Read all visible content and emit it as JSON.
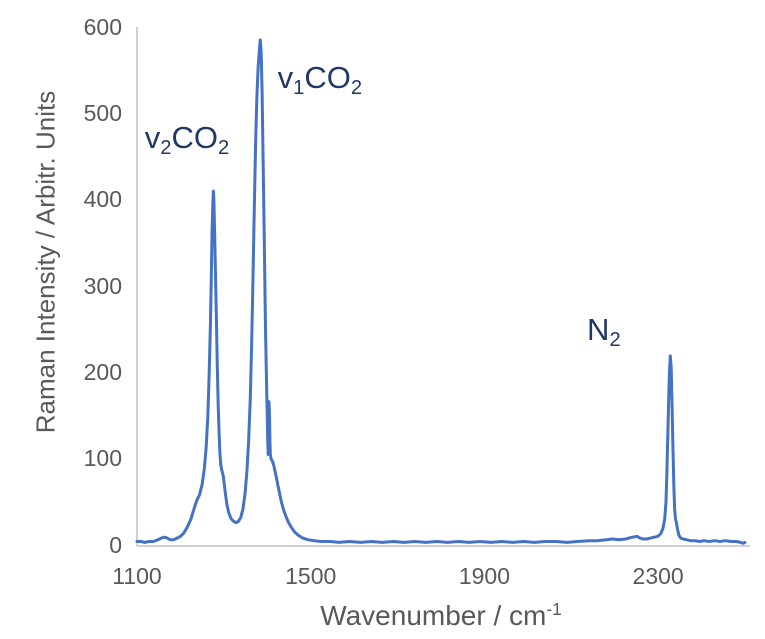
{
  "chart_data": {
    "type": "line",
    "title": "",
    "ylabel": "Raman Intensity / Arbitr. Units",
    "xlabel_parts": [
      {
        "text": "Wavenumber / cm"
      },
      {
        "text": "-1",
        "sup": true
      }
    ],
    "xlim": [
      1100,
      2500
    ],
    "ylim": [
      0,
      600
    ],
    "xticks": [
      1100,
      1500,
      1900,
      2300
    ],
    "yticks": [
      0,
      100,
      200,
      300,
      400,
      500,
      600
    ],
    "grid": false,
    "legend": "none",
    "colors": {
      "line": "#4472c4",
      "axis": "#c2c2c2",
      "tick_text": "#595959",
      "annotation_text": "#1f3864",
      "background": "#ffffff"
    },
    "peaks": [
      {
        "label": "v2CO2",
        "wavenumber": 1276,
        "intensity": 410
      },
      {
        "label": "v1CO2",
        "wavenumber": 1384,
        "intensity": 585
      },
      {
        "label": "N2",
        "wavenumber": 2328,
        "intensity": 219
      }
    ],
    "annotations": [
      {
        "name": "v2-co2-peak-label",
        "x": 1215,
        "y": 471,
        "parts": [
          {
            "text": "v"
          },
          {
            "text": "2",
            "sub": true
          },
          {
            "text": "CO"
          },
          {
            "text": "2",
            "sub": true
          }
        ]
      },
      {
        "name": "v1-co2-peak-label",
        "x": 1521,
        "y": 541,
        "parts": [
          {
            "text": "v"
          },
          {
            "text": "1",
            "sub": true
          },
          {
            "text": "CO"
          },
          {
            "text": "2",
            "sub": true
          }
        ]
      },
      {
        "name": "n2-peak-label",
        "x": 2175,
        "y": 249,
        "parts": [
          {
            "text": "N"
          },
          {
            "text": "2",
            "sub": true
          }
        ]
      }
    ],
    "points": [
      [
        1100,
        4
      ],
      [
        1110,
        4
      ],
      [
        1118,
        3
      ],
      [
        1128,
        4
      ],
      [
        1138,
        4
      ],
      [
        1148,
        6
      ],
      [
        1156,
        8
      ],
      [
        1163,
        9
      ],
      [
        1170,
        8
      ],
      [
        1176,
        6
      ],
      [
        1184,
        6
      ],
      [
        1192,
        8
      ],
      [
        1200,
        10
      ],
      [
        1208,
        14
      ],
      [
        1216,
        21
      ],
      [
        1224,
        30
      ],
      [
        1232,
        43
      ],
      [
        1238,
        52
      ],
      [
        1244,
        58
      ],
      [
        1250,
        70
      ],
      [
        1255,
        88
      ],
      [
        1259,
        112
      ],
      [
        1263,
        148
      ],
      [
        1266,
        195
      ],
      [
        1269,
        255
      ],
      [
        1271,
        310
      ],
      [
        1273,
        365
      ],
      [
        1275,
        400
      ],
      [
        1276,
        410
      ],
      [
        1277,
        400
      ],
      [
        1279,
        358
      ],
      [
        1281,
        308
      ],
      [
        1283,
        256
      ],
      [
        1285,
        206
      ],
      [
        1287,
        162
      ],
      [
        1289,
        130
      ],
      [
        1291,
        106
      ],
      [
        1293,
        93
      ],
      [
        1295,
        87
      ],
      [
        1297,
        83
      ],
      [
        1299,
        79
      ],
      [
        1301,
        70
      ],
      [
        1304,
        58
      ],
      [
        1307,
        47
      ],
      [
        1311,
        38
      ],
      [
        1316,
        31
      ],
      [
        1321,
        28
      ],
      [
        1327,
        26
      ],
      [
        1333,
        27
      ],
      [
        1339,
        32
      ],
      [
        1344,
        42
      ],
      [
        1349,
        60
      ],
      [
        1353,
        85
      ],
      [
        1357,
        120
      ],
      [
        1361,
        170
      ],
      [
        1364,
        235
      ],
      [
        1367,
        310
      ],
      [
        1370,
        390
      ],
      [
        1373,
        465
      ],
      [
        1376,
        520
      ],
      [
        1379,
        555
      ],
      [
        1382,
        575
      ],
      [
        1384,
        585
      ],
      [
        1386,
        570
      ],
      [
        1388,
        525
      ],
      [
        1390,
        462
      ],
      [
        1392,
        392
      ],
      [
        1394,
        318
      ],
      [
        1396,
        250
      ],
      [
        1398,
        196
      ],
      [
        1400,
        148
      ],
      [
        1401,
        122
      ],
      [
        1402,
        105
      ],
      [
        1403,
        163
      ],
      [
        1404,
        166
      ],
      [
        1405,
        150
      ],
      [
        1406,
        122
      ],
      [
        1407,
        105
      ],
      [
        1409,
        99
      ],
      [
        1412,
        97
      ],
      [
        1415,
        92
      ],
      [
        1418,
        85
      ],
      [
        1421,
        78
      ],
      [
        1425,
        68
      ],
      [
        1429,
        58
      ],
      [
        1433,
        49
      ],
      [
        1438,
        40
      ],
      [
        1443,
        33
      ],
      [
        1449,
        26
      ],
      [
        1456,
        20
      ],
      [
        1463,
        15
      ],
      [
        1472,
        11
      ],
      [
        1482,
        8
      ],
      [
        1494,
        6
      ],
      [
        1508,
        5
      ],
      [
        1525,
        4
      ],
      [
        1545,
        4
      ],
      [
        1565,
        3
      ],
      [
        1590,
        4
      ],
      [
        1615,
        3
      ],
      [
        1640,
        4
      ],
      [
        1665,
        3
      ],
      [
        1690,
        4
      ],
      [
        1715,
        3
      ],
      [
        1740,
        4
      ],
      [
        1765,
        3
      ],
      [
        1790,
        4
      ],
      [
        1815,
        3
      ],
      [
        1840,
        4
      ],
      [
        1865,
        3
      ],
      [
        1890,
        4
      ],
      [
        1915,
        3
      ],
      [
        1940,
        4
      ],
      [
        1965,
        3
      ],
      [
        1990,
        4
      ],
      [
        2015,
        3
      ],
      [
        2040,
        4
      ],
      [
        2065,
        4
      ],
      [
        2090,
        3
      ],
      [
        2115,
        4
      ],
      [
        2140,
        5
      ],
      [
        2160,
        5
      ],
      [
        2180,
        6
      ],
      [
        2195,
        7
      ],
      [
        2210,
        6
      ],
      [
        2225,
        7
      ],
      [
        2240,
        9
      ],
      [
        2252,
        10
      ],
      [
        2258,
        8
      ],
      [
        2266,
        7
      ],
      [
        2274,
        7
      ],
      [
        2282,
        8
      ],
      [
        2291,
        9
      ],
      [
        2299,
        10
      ],
      [
        2306,
        13
      ],
      [
        2311,
        19
      ],
      [
        2315,
        30
      ],
      [
        2318,
        50
      ],
      [
        2320,
        80
      ],
      [
        2322,
        122
      ],
      [
        2324,
        165
      ],
      [
        2326,
        200
      ],
      [
        2328,
        219
      ],
      [
        2330,
        205
      ],
      [
        2332,
        165
      ],
      [
        2334,
        115
      ],
      [
        2336,
        70
      ],
      [
        2338,
        42
      ],
      [
        2340,
        30
      ],
      [
        2342,
        26
      ],
      [
        2345,
        17
      ],
      [
        2348,
        11
      ],
      [
        2352,
        8
      ],
      [
        2358,
        7
      ],
      [
        2366,
        6
      ],
      [
        2375,
        5
      ],
      [
        2385,
        5
      ],
      [
        2395,
        4
      ],
      [
        2406,
        5
      ],
      [
        2418,
        4
      ],
      [
        2430,
        5
      ],
      [
        2442,
        4
      ],
      [
        2455,
        5
      ],
      [
        2468,
        4
      ],
      [
        2480,
        4
      ],
      [
        2490,
        3
      ],
      [
        2496,
        2
      ],
      [
        2500,
        3
      ]
    ]
  }
}
